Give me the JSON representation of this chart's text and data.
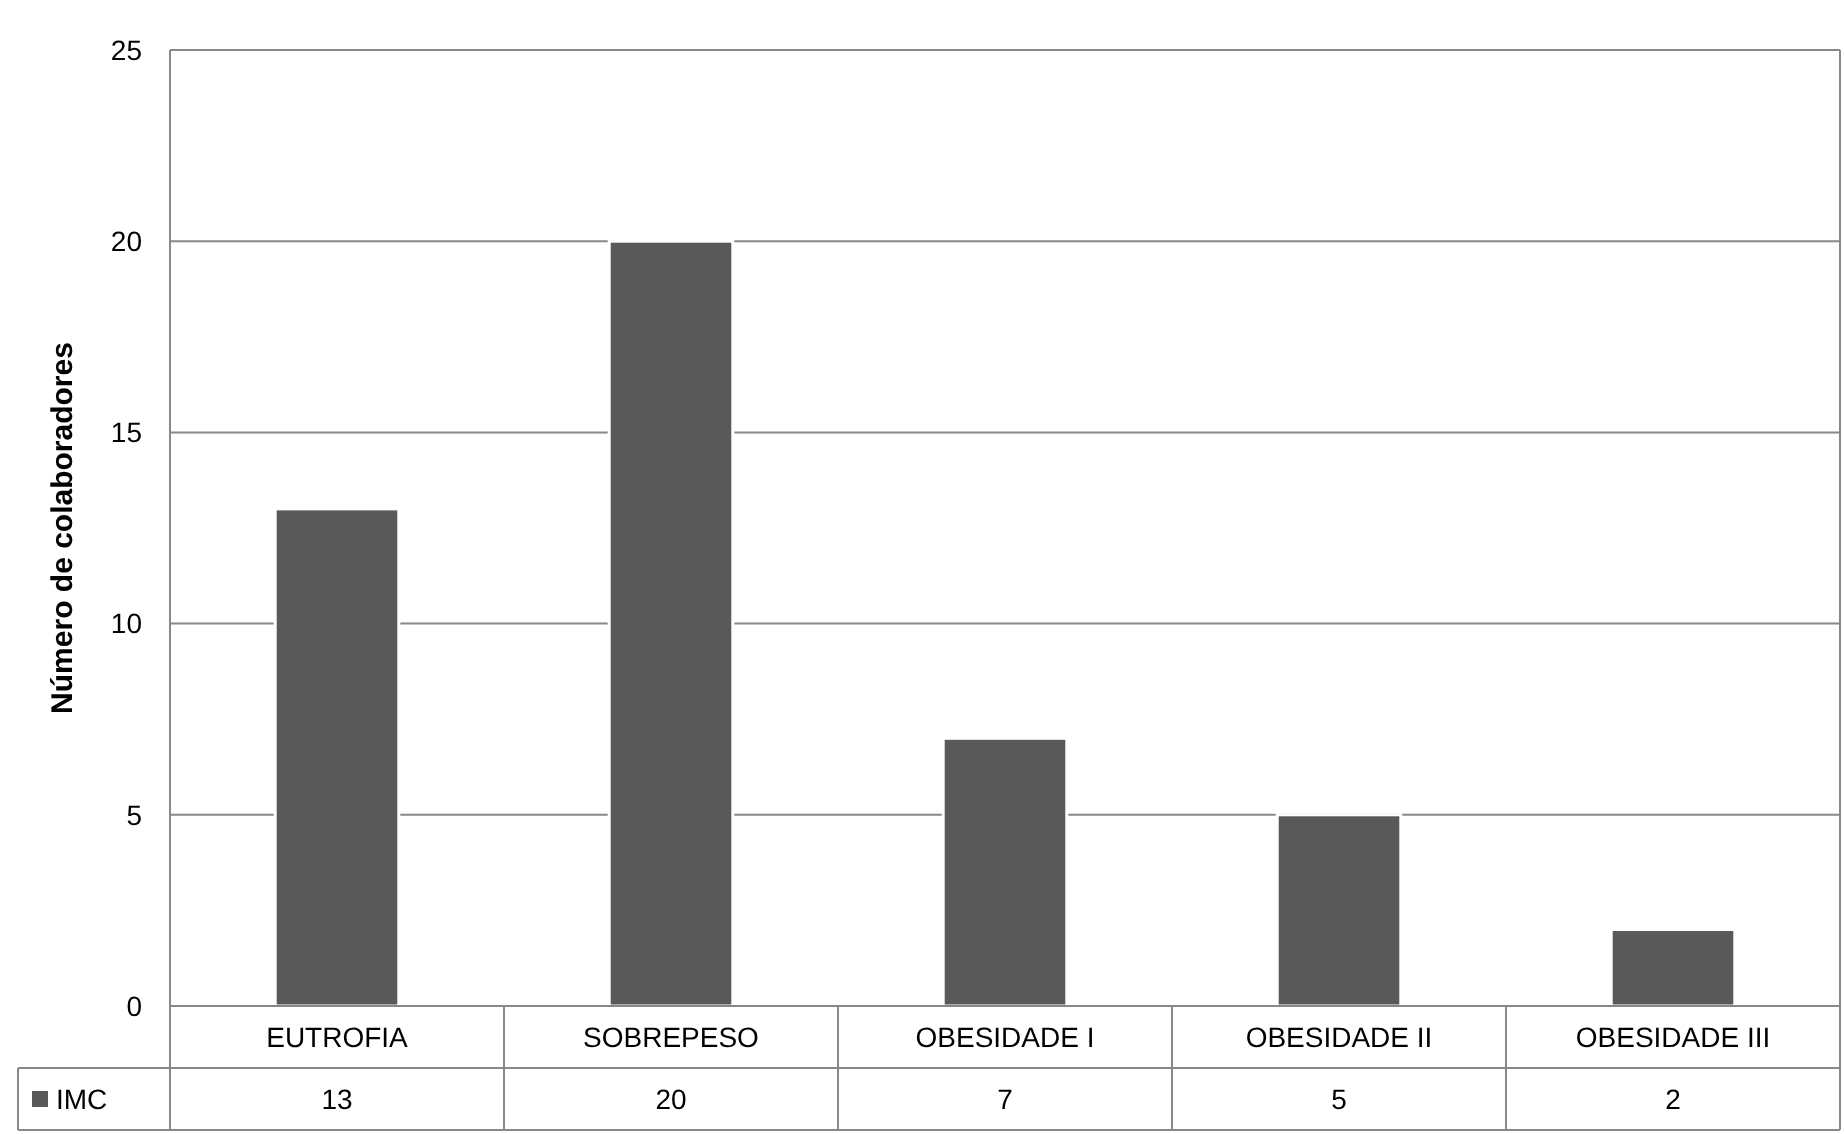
{
  "chart_data": {
    "type": "bar",
    "ylabel": "Número de colaboradores",
    "categories": [
      "EUTROFIA",
      "SOBREPESO",
      "OBESIDADE I",
      "OBESIDADE II",
      "OBESIDADE III"
    ],
    "series": [
      {
        "name": "IMC",
        "color": "#595959",
        "values": [
          13,
          20,
          7,
          5,
          2
        ]
      }
    ],
    "ylim": [
      0,
      25
    ],
    "yticks": [
      0,
      5,
      10,
      15,
      20,
      25
    ],
    "grid": "y",
    "data_labels": true,
    "legend": "bottom left"
  }
}
